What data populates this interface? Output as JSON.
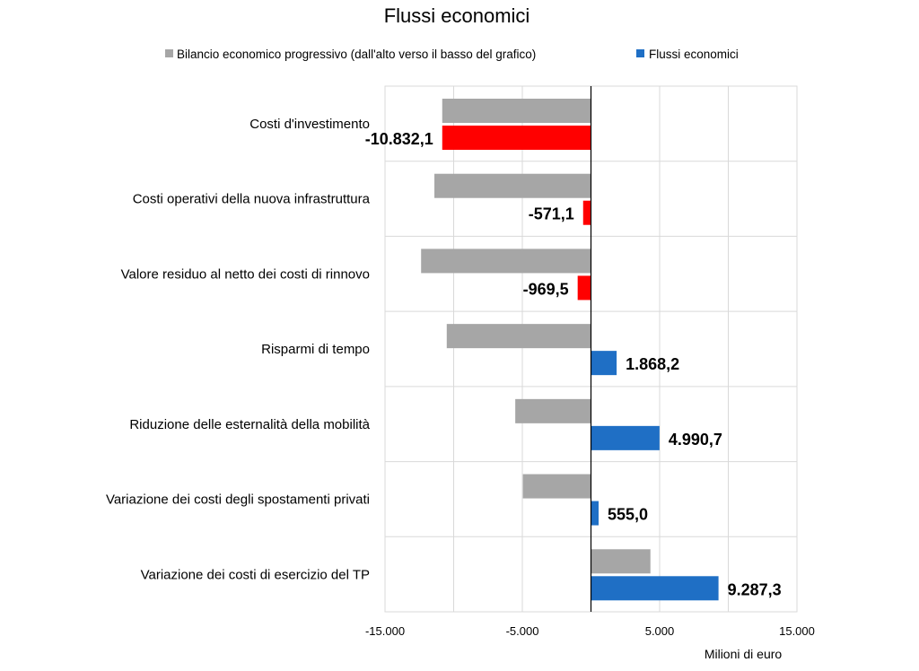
{
  "chart_data": {
    "type": "bar",
    "orientation": "horizontal",
    "title": "Flussi economici",
    "xlabel": "Milioni di euro",
    "ylabel": "",
    "xlim": [
      -15000,
      15000
    ],
    "xticks": [
      -15000,
      -5000,
      5000,
      15000
    ],
    "xtick_labels": [
      "-15.000",
      "-5.000",
      "5.000",
      "15.000"
    ],
    "grid": true,
    "legend_position": "top",
    "categories": [
      "Costi d'investimento",
      "Costi operativi della nuova infrastruttura",
      "Valore residuo al netto dei costi di rinnovo",
      "Risparmi di tempo",
      "Riduzione delle esternalità della mobilità",
      "Variazione dei costi degli spostamenti privati",
      "Variazione dei costi di esercizio del TP"
    ],
    "series": [
      {
        "name": "Bilancio economico progressivo (dall'alto verso il basso del grafico)",
        "color": "#a6a6a6",
        "values": [
          -10832.1,
          -11403.2,
          -12372.7,
          -10504.5,
          -5513.8,
          -4958.8,
          4328.5
        ]
      },
      {
        "name": "Flussi economici",
        "color_positive": "#1f6fc5",
        "color_negative": "#ff0000",
        "values": [
          -10832.1,
          -571.1,
          -969.5,
          1868.2,
          4990.7,
          555.0,
          9287.3
        ],
        "data_labels": [
          "-10.832,1",
          "-571,1",
          "-969,5",
          "1.868,2",
          "4.990,7",
          "555,0",
          "9.287,3"
        ]
      }
    ]
  }
}
